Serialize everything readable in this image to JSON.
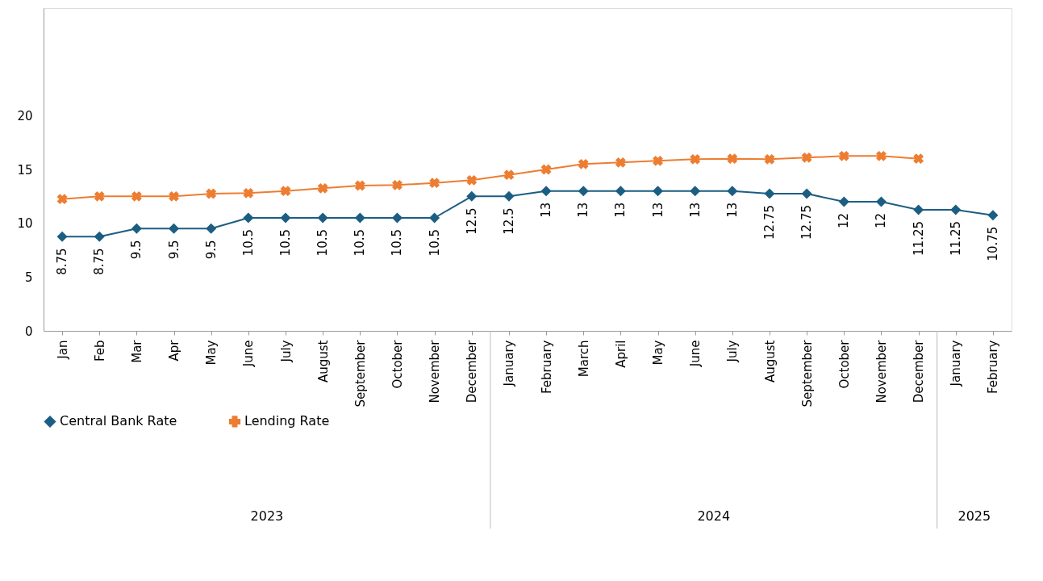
{
  "chart_data": {
    "type": "line",
    "categories": [
      "Jan",
      "Feb",
      "Mar",
      "Apr",
      "May",
      "June",
      "July",
      "August",
      "September",
      "October",
      "November",
      "December",
      "January",
      "February",
      "March",
      "April",
      "May",
      "June",
      "July",
      "August",
      "September",
      "October",
      "November",
      "December",
      "January",
      "February"
    ],
    "series": [
      {
        "name": "Central Bank Rate",
        "color": "#1b5e82",
        "marker": "diamond",
        "data_labels": true,
        "values": [
          8.75,
          8.75,
          9.5,
          9.5,
          9.5,
          10.5,
          10.5,
          10.5,
          10.5,
          10.5,
          10.5,
          12.5,
          12.5,
          13,
          13,
          13,
          13,
          13,
          13,
          12.75,
          12.75,
          12,
          12,
          11.25,
          11.25,
          10.75
        ]
      },
      {
        "name": "Lending Rate",
        "color": "#ed7d31",
        "marker": "cross",
        "values": [
          12.25,
          12.5,
          12.5,
          12.5,
          12.75,
          12.8,
          13.0,
          13.25,
          13.5,
          13.55,
          13.75,
          14.0,
          14.5,
          15.0,
          15.5,
          15.65,
          15.8,
          15.95,
          16.0,
          15.95,
          16.1,
          16.25,
          16.25,
          16.0,
          null,
          null
        ]
      }
    ],
    "ylim": [
      0,
      30
    ],
    "yticks": [
      0,
      5,
      10,
      15,
      20
    ],
    "grid": false,
    "legend": "bottom",
    "line_style": "solid",
    "annotations": [
      "2023",
      "2024",
      "2025"
    ]
  }
}
